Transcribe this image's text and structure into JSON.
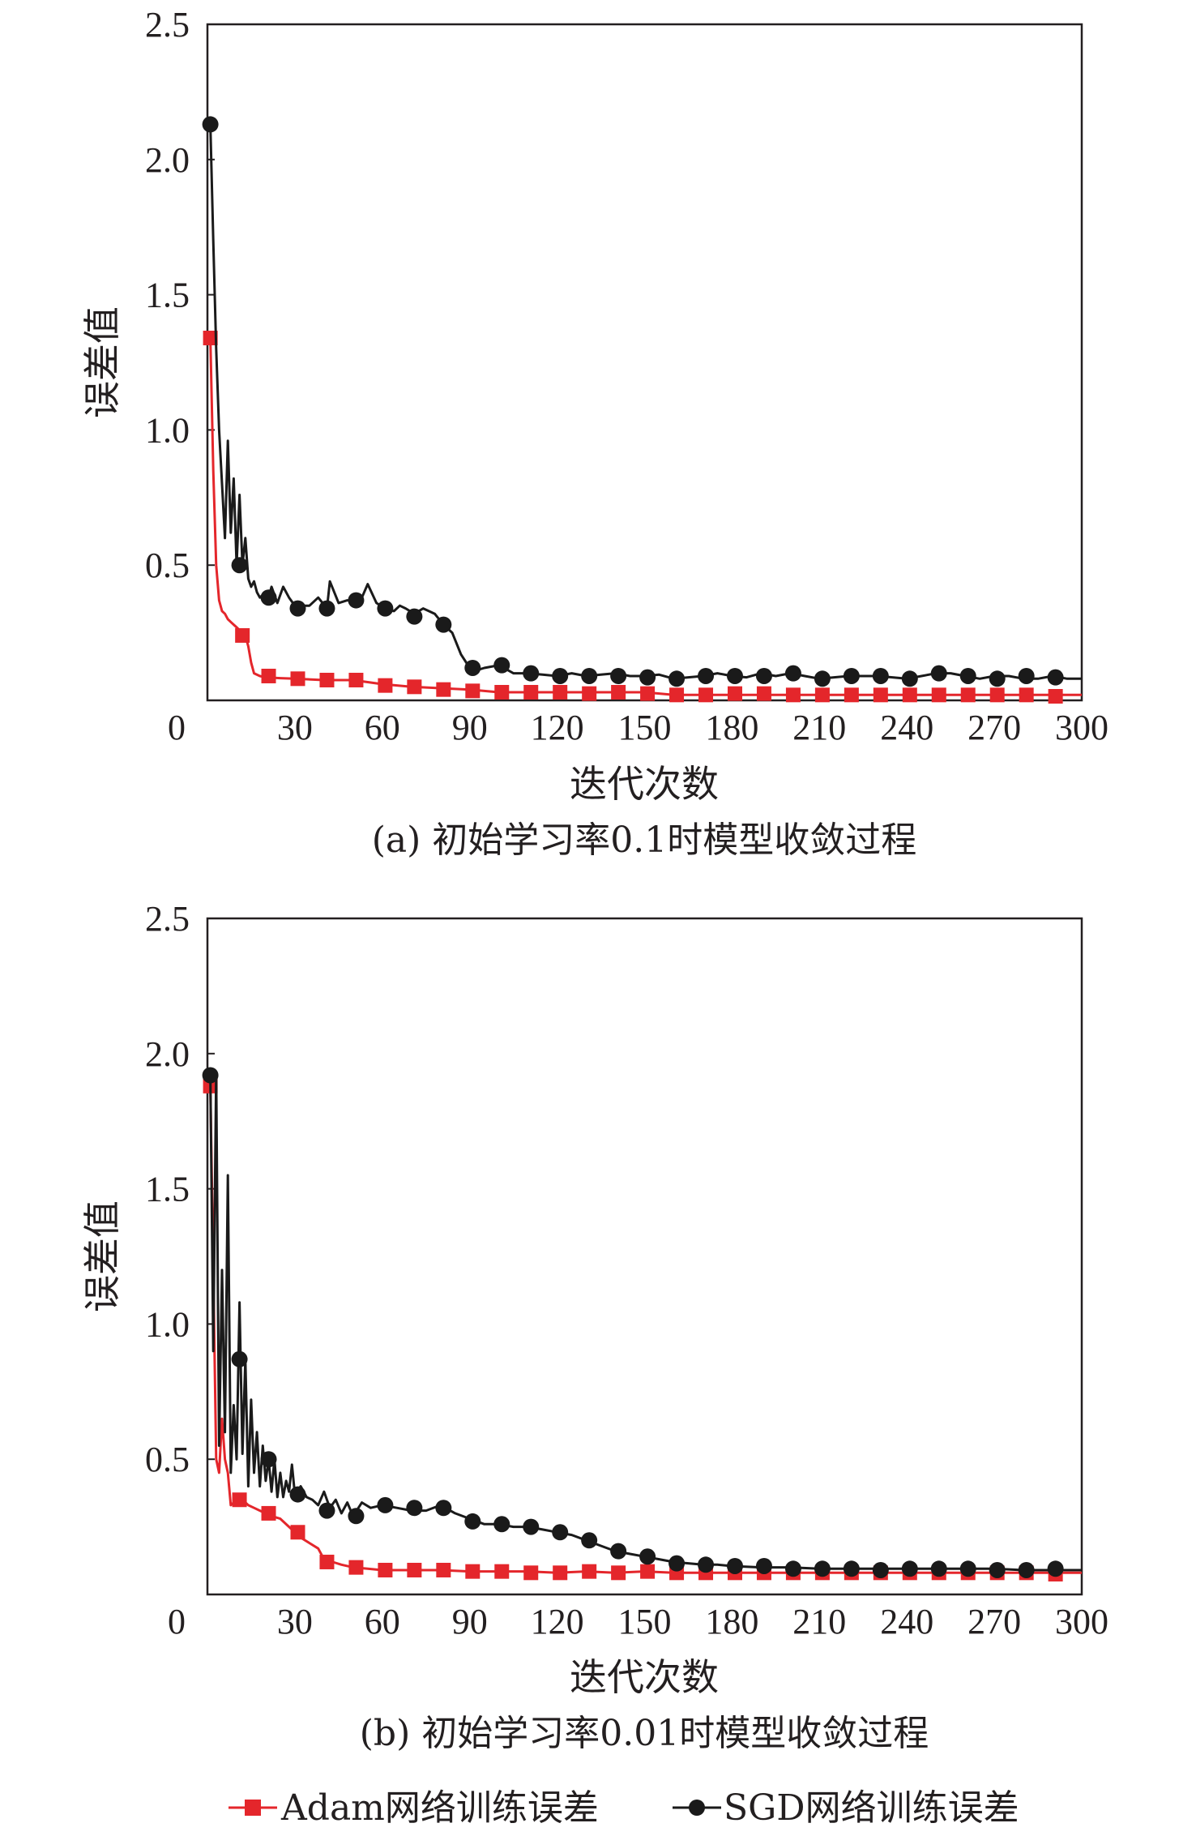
{
  "colors": {
    "adam": "#e4262b",
    "sgd": "#1a1a1a",
    "axis": "#231f20"
  },
  "legend": {
    "adam_label": "Adam网络训练误差",
    "sgd_label": "SGD网络训练误差"
  },
  "chart_data": [
    {
      "type": "line",
      "caption": "(a) 初始学习率0.1时模型收敛过程",
      "xlabel": "迭代次数",
      "ylabel": "误差值",
      "xlim": [
        0,
        300
      ],
      "ylim": [
        0,
        2.5
      ],
      "xticks": [
        "0",
        "30",
        "60",
        "90",
        "120",
        "150",
        "180",
        "210",
        "240",
        "270",
        "300"
      ],
      "yticks": [
        "0.5",
        "1.0",
        "1.5",
        "2.0",
        "2.5"
      ],
      "series": [
        {
          "name": "Adam网络训练误差",
          "x": [
            1,
            2,
            3,
            4,
            5,
            6,
            7,
            8,
            9,
            10,
            11,
            12,
            13,
            14,
            15,
            16,
            18,
            20,
            25,
            30,
            40,
            50,
            60,
            70,
            80,
            90,
            100,
            110,
            120,
            130,
            140,
            150,
            160,
            170,
            180,
            190,
            200,
            210,
            220,
            230,
            240,
            250,
            260,
            270,
            280,
            290,
            300
          ],
          "values": [
            1.34,
            0.85,
            0.5,
            0.37,
            0.33,
            0.32,
            0.3,
            0.29,
            0.28,
            0.27,
            0.26,
            0.25,
            0.24,
            0.2,
            0.14,
            0.1,
            0.09,
            0.085,
            0.082,
            0.08,
            0.075,
            0.075,
            0.06,
            0.05,
            0.045,
            0.04,
            0.03,
            0.03,
            0.03,
            0.03,
            0.03,
            0.03,
            0.02,
            0.02,
            0.02,
            0.02,
            0.02,
            0.02,
            0.02,
            0.02,
            0.02,
            0.02,
            0.02,
            0.02,
            0.02,
            0.02,
            0.02
          ],
          "marker_x": [
            1,
            12,
            21,
            31,
            41,
            51,
            61,
            71,
            81,
            91,
            101,
            111,
            121,
            131,
            141,
            151,
            161,
            171,
            181,
            191,
            201,
            211,
            221,
            231,
            241,
            251,
            261,
            271,
            281,
            291
          ],
          "marker_values": [
            1.34,
            0.24,
            0.09,
            0.08,
            0.075,
            0.075,
            0.055,
            0.05,
            0.04,
            0.035,
            0.03,
            0.03,
            0.03,
            0.025,
            0.03,
            0.025,
            0.02,
            0.02,
            0.025,
            0.025,
            0.02,
            0.02,
            0.02,
            0.02,
            0.02,
            0.02,
            0.02,
            0.02,
            0.02,
            0.015
          ]
        },
        {
          "name": "SGD网络训练误差",
          "x": [
            1,
            2,
            3,
            4,
            5,
            6,
            7,
            8,
            9,
            10,
            11,
            12,
            13,
            14,
            15,
            16,
            17,
            18,
            20,
            21,
            22,
            24,
            26,
            28,
            30,
            32,
            35,
            38,
            41,
            42,
            45,
            48,
            51,
            53,
            55,
            58,
            61,
            64,
            66,
            68,
            71,
            74,
            76,
            78,
            81,
            84,
            87,
            90,
            92,
            95,
            100,
            105,
            110,
            115,
            120,
            125,
            130,
            135,
            140,
            145,
            150,
            155,
            160,
            165,
            170,
            175,
            180,
            185,
            190,
            195,
            200,
            205,
            210,
            215,
            220,
            225,
            230,
            235,
            240,
            245,
            250,
            255,
            260,
            265,
            270,
            275,
            280,
            285,
            290,
            295,
            300
          ],
          "values": [
            2.13,
            1.7,
            1.3,
            1.0,
            0.8,
            0.6,
            0.96,
            0.62,
            0.82,
            0.5,
            0.76,
            0.5,
            0.6,
            0.45,
            0.42,
            0.44,
            0.4,
            0.38,
            0.4,
            0.38,
            0.42,
            0.36,
            0.42,
            0.38,
            0.35,
            0.35,
            0.35,
            0.38,
            0.34,
            0.44,
            0.36,
            0.37,
            0.37,
            0.38,
            0.43,
            0.36,
            0.34,
            0.33,
            0.35,
            0.34,
            0.32,
            0.34,
            0.33,
            0.32,
            0.28,
            0.25,
            0.17,
            0.12,
            0.11,
            0.12,
            0.13,
            0.1,
            0.1,
            0.095,
            0.09,
            0.1,
            0.09,
            0.095,
            0.1,
            0.09,
            0.09,
            0.095,
            0.08,
            0.085,
            0.09,
            0.1,
            0.09,
            0.085,
            0.1,
            0.09,
            0.1,
            0.09,
            0.08,
            0.085,
            0.09,
            0.09,
            0.09,
            0.085,
            0.08,
            0.09,
            0.1,
            0.1,
            0.09,
            0.08,
            0.09,
            0.09,
            0.08,
            0.08,
            0.09,
            0.08,
            0.08
          ],
          "marker_x": [
            1,
            11,
            21,
            31,
            41,
            51,
            61,
            71,
            81,
            91,
            101,
            111,
            121,
            131,
            141,
            151,
            161,
            171,
            181,
            191,
            201,
            211,
            221,
            231,
            241,
            251,
            261,
            271,
            281,
            291
          ],
          "marker_values": [
            2.13,
            0.5,
            0.38,
            0.34,
            0.34,
            0.37,
            0.34,
            0.31,
            0.28,
            0.12,
            0.13,
            0.1,
            0.09,
            0.09,
            0.09,
            0.085,
            0.08,
            0.09,
            0.09,
            0.09,
            0.1,
            0.08,
            0.09,
            0.09,
            0.08,
            0.1,
            0.09,
            0.08,
            0.09,
            0.085
          ]
        }
      ]
    },
    {
      "type": "line",
      "caption": "(b) 初始学习率0.01时模型收敛过程",
      "xlabel": "迭代次数",
      "ylabel": "误差值",
      "xlim": [
        0,
        300
      ],
      "ylim": [
        0,
        2.5
      ],
      "xticks": [
        "0",
        "30",
        "60",
        "90",
        "120",
        "150",
        "180",
        "210",
        "240",
        "270",
        "300"
      ],
      "yticks": [
        "0.5",
        "1.0",
        "1.5",
        "2.0",
        "2.5"
      ],
      "series": [
        {
          "name": "Adam网络训练误差",
          "x": [
            1,
            2,
            3,
            4,
            5,
            6,
            7,
            8,
            9,
            10,
            11,
            12,
            14,
            16,
            18,
            20,
            22,
            25,
            28,
            30,
            32,
            35,
            38,
            40,
            43,
            46,
            50,
            55,
            60,
            70,
            80,
            90,
            100,
            110,
            120,
            130,
            140,
            150,
            160,
            170,
            180,
            190,
            200,
            210,
            220,
            230,
            240,
            250,
            260,
            270,
            280,
            290,
            300
          ],
          "values": [
            1.88,
            1.2,
            0.5,
            0.45,
            0.65,
            0.5,
            0.45,
            0.33,
            0.34,
            0.35,
            0.36,
            0.35,
            0.33,
            0.32,
            0.31,
            0.3,
            0.29,
            0.28,
            0.25,
            0.23,
            0.21,
            0.19,
            0.17,
            0.13,
            0.12,
            0.11,
            0.1,
            0.095,
            0.09,
            0.09,
            0.09,
            0.085,
            0.085,
            0.085,
            0.08,
            0.085,
            0.08,
            0.085,
            0.08,
            0.08,
            0.08,
            0.08,
            0.08,
            0.08,
            0.08,
            0.08,
            0.08,
            0.08,
            0.08,
            0.08,
            0.08,
            0.08,
            0.08
          ],
          "marker_x": [
            1,
            11,
            21,
            31,
            41,
            51,
            61,
            71,
            81,
            91,
            101,
            111,
            121,
            131,
            141,
            151,
            161,
            171,
            181,
            191,
            201,
            211,
            221,
            231,
            241,
            251,
            261,
            271,
            281,
            291
          ],
          "marker_values": [
            1.88,
            0.35,
            0.3,
            0.23,
            0.12,
            0.1,
            0.09,
            0.09,
            0.09,
            0.085,
            0.085,
            0.08,
            0.08,
            0.085,
            0.08,
            0.085,
            0.08,
            0.08,
            0.08,
            0.08,
            0.08,
            0.08,
            0.08,
            0.08,
            0.08,
            0.08,
            0.08,
            0.08,
            0.08,
            0.075
          ]
        },
        {
          "name": "SGD网络训练误差",
          "x": [
            1,
            2,
            3,
            4,
            5,
            6,
            7,
            8,
            9,
            10,
            11,
            12,
            13,
            14,
            15,
            16,
            17,
            18,
            19,
            20,
            21,
            22,
            23,
            24,
            25,
            26,
            27,
            28,
            29,
            30,
            32,
            34,
            36,
            38,
            40,
            42,
            44,
            46,
            48,
            50,
            53,
            56,
            60,
            65,
            70,
            75,
            80,
            85,
            90,
            95,
            100,
            105,
            110,
            115,
            120,
            125,
            130,
            135,
            140,
            145,
            150,
            155,
            160,
            165,
            170,
            175,
            180,
            190,
            200,
            210,
            220,
            230,
            240,
            250,
            260,
            270,
            280,
            290,
            300
          ],
          "values": [
            1.92,
            0.9,
            1.93,
            0.55,
            1.2,
            0.6,
            1.55,
            0.45,
            0.7,
            0.5,
            1.08,
            0.52,
            0.87,
            0.4,
            0.72,
            0.45,
            0.6,
            0.4,
            0.55,
            0.42,
            0.5,
            0.38,
            0.5,
            0.36,
            0.45,
            0.36,
            0.42,
            0.38,
            0.48,
            0.37,
            0.4,
            0.36,
            0.35,
            0.33,
            0.38,
            0.32,
            0.35,
            0.3,
            0.34,
            0.29,
            0.34,
            0.32,
            0.33,
            0.32,
            0.31,
            0.31,
            0.33,
            0.3,
            0.28,
            0.26,
            0.26,
            0.25,
            0.25,
            0.24,
            0.23,
            0.22,
            0.2,
            0.18,
            0.16,
            0.15,
            0.14,
            0.13,
            0.12,
            0.115,
            0.11,
            0.11,
            0.105,
            0.1,
            0.1,
            0.095,
            0.095,
            0.095,
            0.095,
            0.095,
            0.095,
            0.095,
            0.09,
            0.09,
            0.09
          ],
          "marker_x": [
            1,
            11,
            21,
            31,
            41,
            51,
            61,
            71,
            81,
            91,
            101,
            111,
            121,
            131,
            141,
            151,
            161,
            171,
            181,
            191,
            201,
            211,
            221,
            231,
            241,
            251,
            261,
            271,
            281,
            291
          ],
          "marker_values": [
            1.92,
            0.87,
            0.5,
            0.37,
            0.31,
            0.29,
            0.33,
            0.32,
            0.32,
            0.27,
            0.26,
            0.25,
            0.23,
            0.2,
            0.16,
            0.14,
            0.115,
            0.11,
            0.105,
            0.105,
            0.095,
            0.095,
            0.095,
            0.09,
            0.095,
            0.095,
            0.095,
            0.09,
            0.09,
            0.095
          ]
        }
      ]
    }
  ]
}
